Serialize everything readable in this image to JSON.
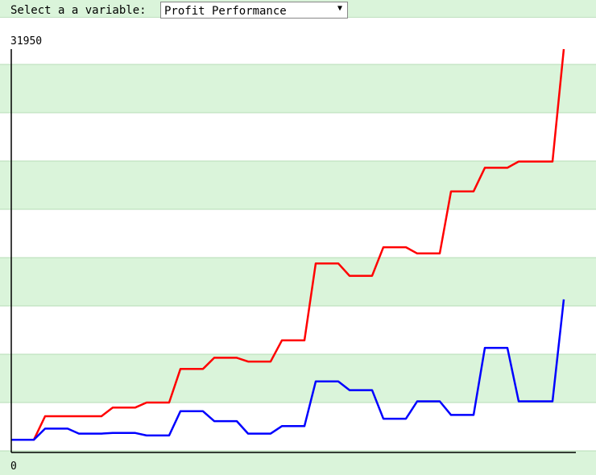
{
  "header": {
    "label": "Select a a variable:",
    "selected_option": "Profit Performance",
    "caret_icon": "triangle-down-icon"
  },
  "chart_data": {
    "type": "line",
    "title": "",
    "xlabel": "",
    "ylabel": "",
    "y_max_label": "31950",
    "y_min_label": "0",
    "ylim": [
      0,
      31950
    ],
    "x": [
      1,
      2,
      3,
      4,
      5,
      6,
      7,
      8,
      9,
      10,
      11,
      12,
      13,
      14,
      15,
      16,
      17,
      18,
      19,
      20,
      21,
      22,
      23,
      24,
      25,
      26,
      27,
      28,
      29,
      30,
      31,
      32,
      33,
      34,
      35,
      36,
      37,
      38,
      39,
      40,
      41,
      42,
      43,
      44,
      45,
      46,
      47,
      48,
      49,
      50
    ],
    "grid": "horizontal alternating bands",
    "series": [
      {
        "color": "#ff0000",
        "values": [
          500,
          500,
          500,
          2400,
          2400,
          2400,
          2400,
          2400,
          2400,
          3100,
          3100,
          3100,
          3500,
          3500,
          3500,
          6200,
          6200,
          6200,
          7100,
          7100,
          7100,
          6800,
          6800,
          6800,
          8500,
          8500,
          8500,
          14700,
          14700,
          14700,
          13700,
          13700,
          13700,
          16000,
          16000,
          16000,
          15500,
          15500,
          15500,
          20500,
          20500,
          20500,
          22400,
          22400,
          22400,
          22900,
          22900,
          22900,
          22900,
          31950
        ]
      },
      {
        "color": "#0000ff",
        "values": [
          500,
          500,
          500,
          1400,
          1400,
          1400,
          1000,
          1000,
          1000,
          1050,
          1050,
          1050,
          850,
          850,
          850,
          2800,
          2800,
          2800,
          2000,
          2000,
          2000,
          1000,
          1000,
          1000,
          1600,
          1600,
          1600,
          5200,
          5200,
          5200,
          4500,
          4500,
          4500,
          2200,
          2200,
          2200,
          3600,
          3600,
          3600,
          2500,
          2500,
          2500,
          7900,
          7900,
          7900,
          3600,
          3600,
          3600,
          3600,
          11800
        ]
      }
    ]
  }
}
